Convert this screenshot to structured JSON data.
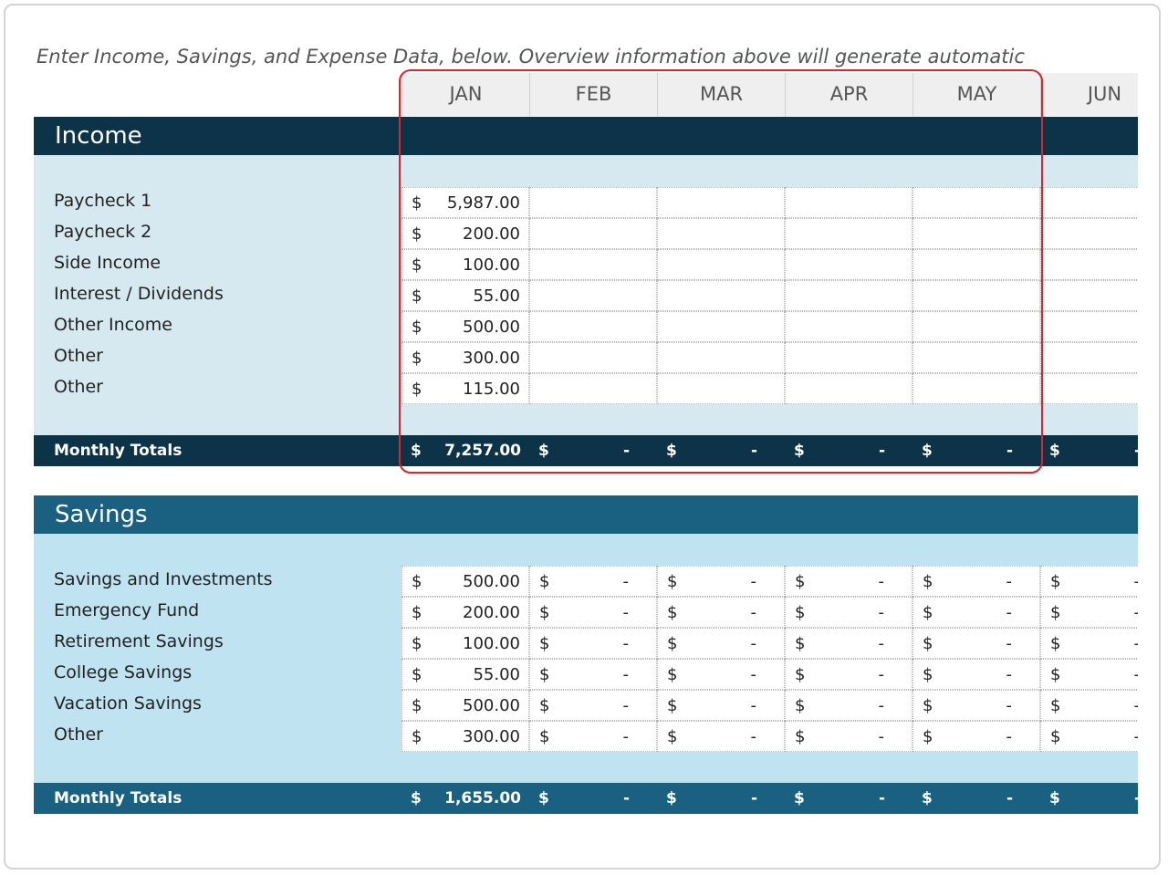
{
  "instruction": "Enter Income, Savings, and Expense Data, below.  Overview information above will generate automatic",
  "currency": "$",
  "months": [
    "JAN",
    "FEB",
    "MAR",
    "APR",
    "MAY",
    "JUN"
  ],
  "income": {
    "title": "Income",
    "rows": [
      {
        "label": "Paycheck 1",
        "amounts": [
          "5,987.00"
        ]
      },
      {
        "label": "Paycheck 2",
        "amounts": [
          "200.00"
        ]
      },
      {
        "label": "Side Income",
        "amounts": [
          "100.00"
        ]
      },
      {
        "label": "Interest / Dividends",
        "amounts": [
          "55.00"
        ]
      },
      {
        "label": "Other Income",
        "amounts": [
          "500.00"
        ]
      },
      {
        "label": "Other",
        "amounts": [
          "300.00"
        ]
      },
      {
        "label": "Other",
        "amounts": [
          "115.00"
        ]
      }
    ],
    "total": {
      "label": "Monthly Totals",
      "amounts": [
        "7,257.00",
        "-",
        "-",
        "-",
        "-",
        "-"
      ]
    }
  },
  "savings": {
    "title": "Savings",
    "rows": [
      {
        "label": "Savings and Investments",
        "amounts": [
          "500.00",
          "-",
          "-",
          "-",
          "-",
          "-"
        ]
      },
      {
        "label": "Emergency Fund",
        "amounts": [
          "200.00",
          "-",
          "-",
          "-",
          "-",
          "-"
        ]
      },
      {
        "label": "Retirement Savings",
        "amounts": [
          "100.00",
          "-",
          "-",
          "-",
          "-",
          "-"
        ]
      },
      {
        "label": "College Savings",
        "amounts": [
          "55.00",
          "-",
          "-",
          "-",
          "-",
          "-"
        ]
      },
      {
        "label": "Vacation Savings",
        "amounts": [
          "500.00",
          "-",
          "-",
          "-",
          "-",
          "-"
        ]
      },
      {
        "label": "Other",
        "amounts": [
          "300.00",
          "-",
          "-",
          "-",
          "-",
          "-"
        ]
      }
    ],
    "total": {
      "label": "Monthly Totals",
      "amounts": [
        "1,655.00",
        "-",
        "-",
        "-",
        "-",
        "-"
      ]
    }
  }
}
